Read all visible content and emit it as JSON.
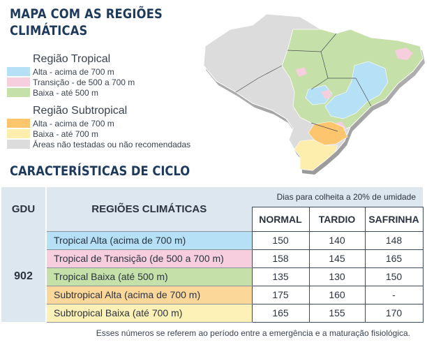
{
  "title": {
    "line1": "MAPA COM AS REGIÕES",
    "line2": "CLIMÁTICAS"
  },
  "legend": {
    "tropical": {
      "title": "Região Tropical",
      "items": [
        {
          "label": "Alta - acima de 700 m",
          "color": "#b5e0f5"
        },
        {
          "label": "Transição - de 500 a 700 m",
          "color": "#f6cedd"
        },
        {
          "label": "Baixa - até 500 m",
          "color": "#c6e0a9"
        }
      ]
    },
    "subtropical": {
      "title": "Região Subtropical",
      "items": [
        {
          "label": "Alta - acima de 700 m",
          "color": "#fcc56e"
        },
        {
          "label": "Baixa - até 700 m",
          "color": "#fdeeae"
        },
        {
          "label": "Áreas não testadas ou não recomendadas",
          "color": "#dcdcdc"
        }
      ]
    }
  },
  "section_title": "CARACTERÍSTICAS DE CICLO",
  "table": {
    "gdu_header": "GDU",
    "regions_header": "REGIÕES CLIMÁTICAS",
    "days_header": "Dias para colheita a 20% de umidade",
    "columns": [
      "NORMAL",
      "TARDIO",
      "SAFRINHA"
    ],
    "gdu_value": "902",
    "rows": [
      {
        "region": "Tropical Alta (acima de 700 m)",
        "color": "#b5e0f5",
        "values": [
          "150",
          "140",
          "148"
        ]
      },
      {
        "region": "Tropical de Transição (de 500 a 700 m)",
        "color": "#f6cedd",
        "values": [
          "158",
          "145",
          "165"
        ]
      },
      {
        "region": "Tropical Baixa (até 500 m)",
        "color": "#c6e0a9",
        "values": [
          "135",
          "130",
          "150"
        ]
      },
      {
        "region": "Subtropical Alta (acima de 700 m)",
        "color": "#fcd79a",
        "values": [
          "175",
          "160",
          "-"
        ]
      },
      {
        "region": "Subtropical Baixa (até 700 m)",
        "color": "#fdf1b8",
        "values": [
          "165",
          "155",
          "170"
        ]
      }
    ]
  },
  "note": "Esses números se referem ao período entre a emergência e a maturação fisiológica."
}
